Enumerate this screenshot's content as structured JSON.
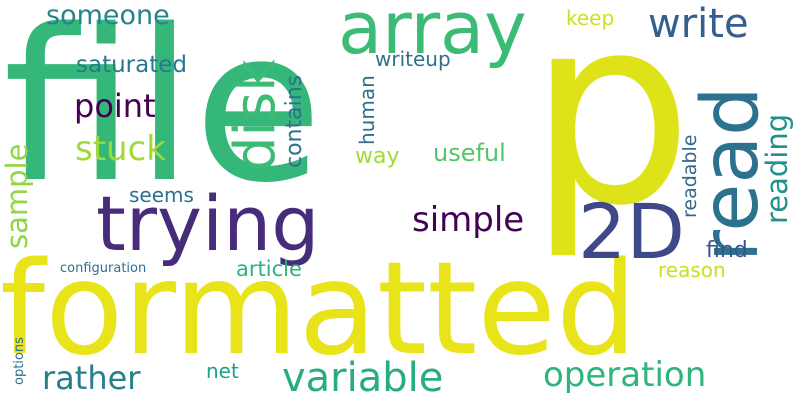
{
  "words": [
    {
      "text": "file",
      "color": "#35b779"
    },
    {
      "text": "p",
      "color": "#dde318"
    },
    {
      "text": "formatted",
      "color": "#e8e419"
    },
    {
      "text": "array",
      "color": "#3bbb75"
    },
    {
      "text": "trying",
      "color": "#472c7a"
    },
    {
      "text": "read",
      "color": "#2c728e"
    },
    {
      "text": "2D",
      "color": "#3f4889"
    },
    {
      "text": "disk",
      "color": "#3bbb75"
    },
    {
      "text": "write",
      "color": "#355f8d"
    },
    {
      "text": "variable",
      "color": "#27ad81"
    },
    {
      "text": "someone",
      "color": "#25848e"
    },
    {
      "text": "point",
      "color": "#440154"
    },
    {
      "text": "stuck",
      "color": "#a0da39"
    },
    {
      "text": "simple",
      "color": "#440154"
    },
    {
      "text": "operation",
      "color": "#2fb47c"
    },
    {
      "text": "rather",
      "color": "#277f8e"
    },
    {
      "text": "saturated",
      "color": "#2a788e"
    },
    {
      "text": "sample",
      "color": "#8fd744"
    },
    {
      "text": "reading",
      "color": "#21918c"
    },
    {
      "text": "useful",
      "color": "#52c569"
    },
    {
      "text": "contains",
      "color": "#2d708e"
    },
    {
      "text": "writeup",
      "color": "#2d708e"
    },
    {
      "text": "keep",
      "color": "#cde11d"
    },
    {
      "text": "human",
      "color": "#2d708e"
    },
    {
      "text": "way",
      "color": "#a0da39"
    },
    {
      "text": "readable",
      "color": "#31688e"
    },
    {
      "text": "seems",
      "color": "#2d708e"
    },
    {
      "text": "find",
      "color": "#3b528b"
    },
    {
      "text": "reason",
      "color": "#c8e020"
    },
    {
      "text": "article",
      "color": "#2db27d"
    },
    {
      "text": "configuration",
      "color": "#2d708e"
    },
    {
      "text": "net",
      "color": "#1fa088"
    },
    {
      "text": "options",
      "color": "#2d708e"
    }
  ]
}
